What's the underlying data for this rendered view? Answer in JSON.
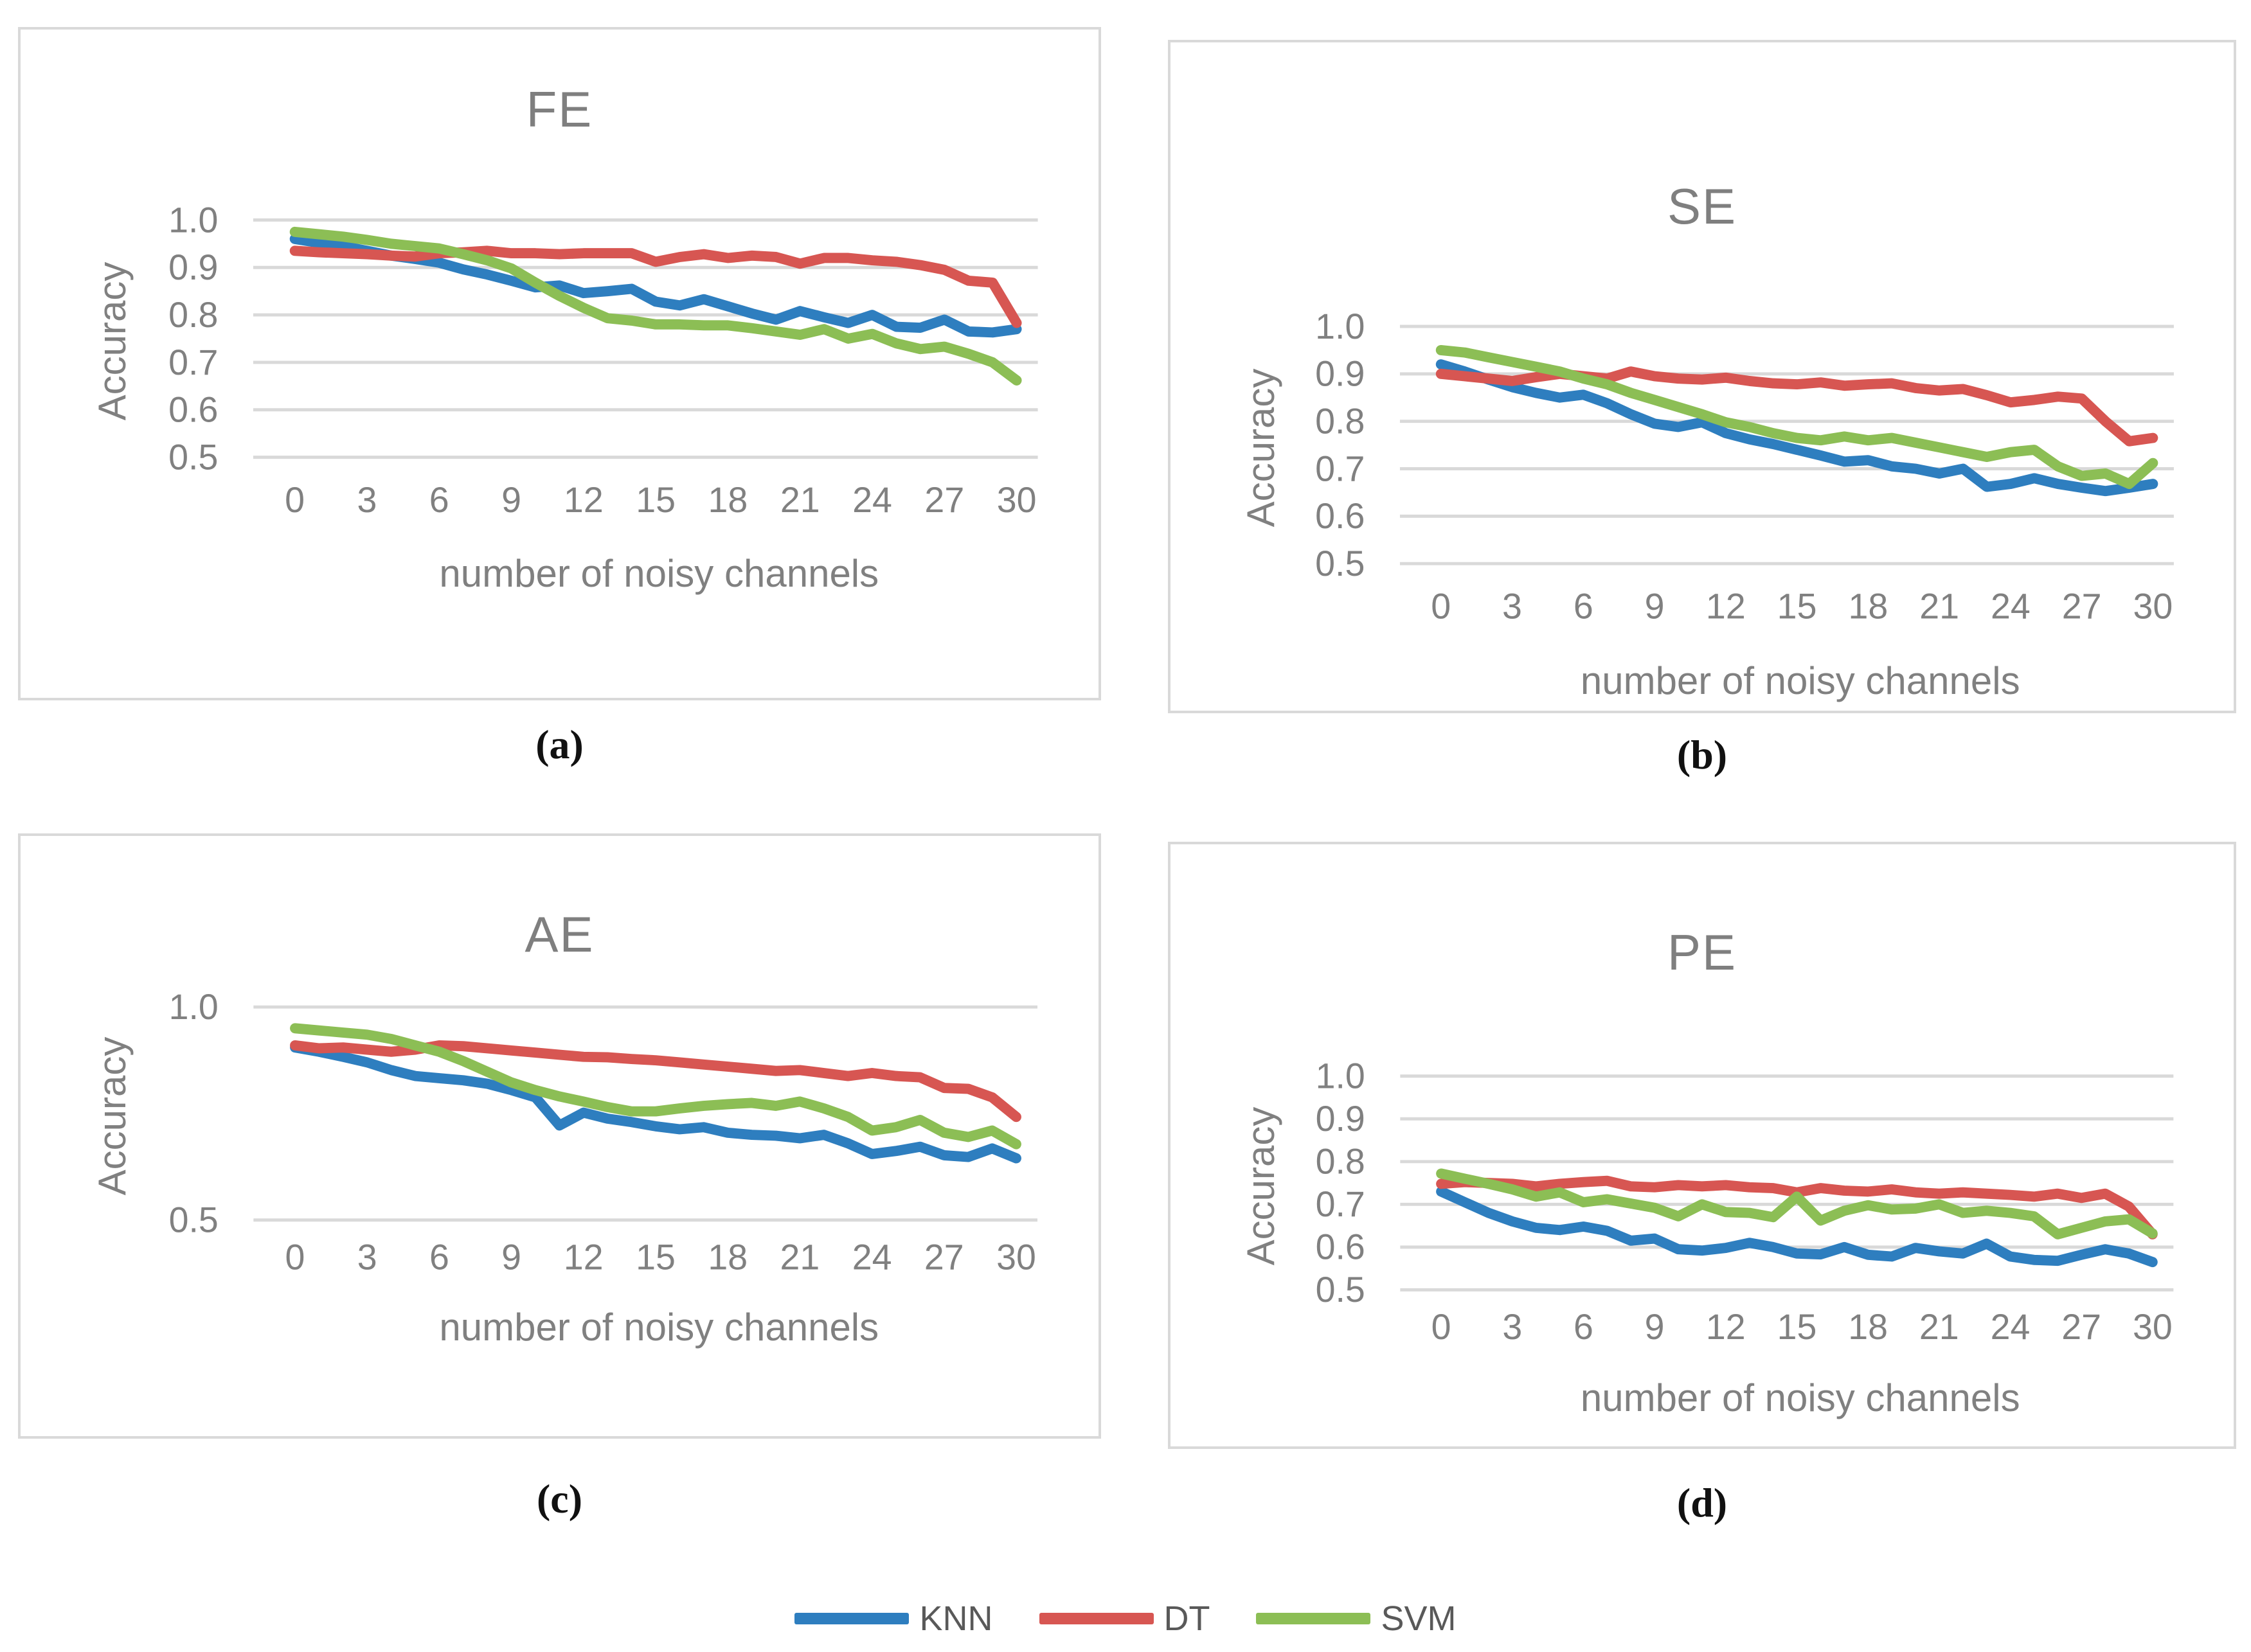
{
  "figure": {
    "background": "#FFFFFF",
    "gridline_color": "#D9D9D9",
    "axis_text_color": "#808080",
    "title_color": "#7F7F7F",
    "caption_color": "#111111"
  },
  "legend": [
    {
      "label": "KNN",
      "color": "#2E7EBF"
    },
    {
      "label": "DT",
      "color": "#D75652"
    },
    {
      "label": "SVM",
      "color": "#8CBE55"
    }
  ],
  "captions": [
    "(a)",
    "(b)",
    "(c)",
    "(d)"
  ],
  "chart_data": [
    {
      "type": "line",
      "title": "FE",
      "caption": "(a)",
      "xlabel": "number of noisy channels",
      "ylabel": "Accuracy",
      "xlim": [
        0,
        30
      ],
      "ylim": [
        0.5,
        1.0
      ],
      "grid": true,
      "legend_position": "figure-bottom",
      "x_ticks": [
        0,
        3,
        6,
        9,
        12,
        15,
        18,
        21,
        24,
        27,
        30
      ],
      "y_ticks": [
        1.0,
        0.9,
        0.8,
        0.7,
        0.6,
        0.5
      ],
      "x": [
        0,
        1,
        2,
        3,
        4,
        5,
        6,
        7,
        8,
        9,
        10,
        11,
        12,
        13,
        14,
        15,
        16,
        17,
        18,
        19,
        20,
        21,
        22,
        23,
        24,
        25,
        26,
        27,
        28,
        29,
        30
      ],
      "series": [
        {
          "name": "KNN",
          "color": "#2E7EBF",
          "values": [
            0.96,
            0.952,
            0.945,
            0.935,
            0.925,
            0.918,
            0.91,
            0.896,
            0.885,
            0.872,
            0.858,
            0.862,
            0.846,
            0.85,
            0.855,
            0.828,
            0.82,
            0.833,
            0.818,
            0.803,
            0.79,
            0.808,
            0.795,
            0.783,
            0.8,
            0.775,
            0.773,
            0.79,
            0.765,
            0.763,
            0.77
          ]
        },
        {
          "name": "DT",
          "color": "#D75652",
          "values": [
            0.935,
            0.932,
            0.93,
            0.928,
            0.925,
            0.923,
            0.93,
            0.932,
            0.935,
            0.93,
            0.93,
            0.928,
            0.93,
            0.93,
            0.93,
            0.912,
            0.922,
            0.928,
            0.92,
            0.925,
            0.922,
            0.908,
            0.92,
            0.92,
            0.915,
            0.912,
            0.905,
            0.895,
            0.872,
            0.868,
            0.783
          ]
        },
        {
          "name": "SVM",
          "color": "#8CBE55",
          "values": [
            0.975,
            0.97,
            0.965,
            0.958,
            0.95,
            0.945,
            0.94,
            0.928,
            0.915,
            0.898,
            0.868,
            0.84,
            0.815,
            0.793,
            0.788,
            0.78,
            0.78,
            0.778,
            0.778,
            0.772,
            0.765,
            0.758,
            0.77,
            0.75,
            0.76,
            0.74,
            0.728,
            0.733,
            0.718,
            0.7,
            0.662
          ]
        }
      ]
    },
    {
      "type": "line",
      "title": "SE",
      "caption": "(b)",
      "xlabel": "number of noisy channels",
      "ylabel": "Accuracy",
      "xlim": [
        0,
        30
      ],
      "ylim": [
        0.5,
        1.0
      ],
      "grid": true,
      "legend_position": "figure-bottom",
      "x_ticks": [
        0,
        3,
        6,
        9,
        12,
        15,
        18,
        21,
        24,
        27,
        30
      ],
      "y_ticks": [
        1.0,
        0.9,
        0.8,
        0.7,
        0.6,
        0.5
      ],
      "x": [
        0,
        1,
        2,
        3,
        4,
        5,
        6,
        7,
        8,
        9,
        10,
        11,
        12,
        13,
        14,
        15,
        16,
        17,
        18,
        19,
        20,
        21,
        22,
        23,
        24,
        25,
        26,
        27,
        28,
        29,
        30
      ],
      "series": [
        {
          "name": "KNN",
          "color": "#2E7EBF",
          "values": [
            0.92,
            0.905,
            0.888,
            0.872,
            0.86,
            0.85,
            0.856,
            0.838,
            0.815,
            0.795,
            0.788,
            0.798,
            0.775,
            0.762,
            0.752,
            0.74,
            0.728,
            0.715,
            0.718,
            0.705,
            0.7,
            0.69,
            0.7,
            0.662,
            0.668,
            0.68,
            0.668,
            0.66,
            0.653,
            0.66,
            0.668
          ]
        },
        {
          "name": "DT",
          "color": "#D75652",
          "values": [
            0.9,
            0.895,
            0.89,
            0.885,
            0.893,
            0.9,
            0.895,
            0.89,
            0.905,
            0.895,
            0.89,
            0.888,
            0.892,
            0.885,
            0.88,
            0.878,
            0.882,
            0.875,
            0.878,
            0.88,
            0.87,
            0.865,
            0.868,
            0.855,
            0.84,
            0.845,
            0.852,
            0.848,
            0.8,
            0.758,
            0.765
          ]
        },
        {
          "name": "SVM",
          "color": "#8CBE55",
          "values": [
            0.95,
            0.945,
            0.935,
            0.925,
            0.915,
            0.905,
            0.89,
            0.878,
            0.86,
            0.845,
            0.83,
            0.815,
            0.798,
            0.788,
            0.775,
            0.765,
            0.76,
            0.768,
            0.76,
            0.765,
            0.755,
            0.745,
            0.735,
            0.725,
            0.735,
            0.74,
            0.705,
            0.685,
            0.69,
            0.668,
            0.712
          ]
        }
      ]
    },
    {
      "type": "line",
      "title": "AE",
      "caption": "(c)",
      "xlabel": "number of noisy channels",
      "ylabel": "Accuracy",
      "xlim": [
        0,
        30
      ],
      "ylim": [
        0.5,
        1.0
      ],
      "grid": true,
      "legend_position": "figure-bottom",
      "x_ticks": [
        0,
        3,
        6,
        9,
        12,
        15,
        18,
        21,
        24,
        27,
        30
      ],
      "y_ticks": [
        1.0,
        0.5
      ],
      "x": [
        0,
        1,
        2,
        3,
        4,
        5,
        6,
        7,
        8,
        9,
        10,
        11,
        12,
        13,
        14,
        15,
        16,
        17,
        18,
        19,
        20,
        21,
        22,
        23,
        24,
        25,
        26,
        27,
        28,
        29,
        30
      ],
      "series": [
        {
          "name": "KNN",
          "color": "#2E7EBF",
          "values": [
            0.905,
            0.895,
            0.883,
            0.87,
            0.852,
            0.838,
            0.833,
            0.828,
            0.82,
            0.805,
            0.788,
            0.722,
            0.752,
            0.738,
            0.73,
            0.72,
            0.713,
            0.718,
            0.705,
            0.7,
            0.698,
            0.692,
            0.7,
            0.68,
            0.655,
            0.662,
            0.672,
            0.652,
            0.648,
            0.668,
            0.645
          ]
        },
        {
          "name": "DT",
          "color": "#D75652",
          "values": [
            0.91,
            0.903,
            0.905,
            0.9,
            0.895,
            0.9,
            0.91,
            0.908,
            0.903,
            0.898,
            0.893,
            0.888,
            0.883,
            0.882,
            0.878,
            0.875,
            0.87,
            0.865,
            0.86,
            0.855,
            0.85,
            0.852,
            0.845,
            0.838,
            0.845,
            0.838,
            0.835,
            0.81,
            0.808,
            0.788,
            0.742
          ]
        },
        {
          "name": "SVM",
          "color": "#8CBE55",
          "values": [
            0.95,
            0.945,
            0.94,
            0.935,
            0.925,
            0.91,
            0.895,
            0.873,
            0.848,
            0.823,
            0.805,
            0.79,
            0.778,
            0.765,
            0.755,
            0.755,
            0.762,
            0.768,
            0.772,
            0.775,
            0.768,
            0.778,
            0.762,
            0.742,
            0.71,
            0.718,
            0.735,
            0.705,
            0.695,
            0.71,
            0.678
          ]
        }
      ]
    },
    {
      "type": "line",
      "title": "PE",
      "caption": "(d)",
      "xlabel": "number of noisy channels",
      "ylabel": "Accuracy",
      "xlim": [
        0,
        30
      ],
      "ylim": [
        0.5,
        1.0
      ],
      "grid": true,
      "legend_position": "figure-bottom",
      "x_ticks": [
        0,
        3,
        6,
        9,
        12,
        15,
        18,
        21,
        24,
        27,
        30
      ],
      "y_ticks": [
        1.0,
        0.9,
        0.8,
        0.7,
        0.6,
        0.5
      ],
      "x": [
        0,
        1,
        2,
        3,
        4,
        5,
        6,
        7,
        8,
        9,
        10,
        11,
        12,
        13,
        14,
        15,
        16,
        17,
        18,
        19,
        20,
        21,
        22,
        23,
        24,
        25,
        26,
        27,
        28,
        29,
        30
      ],
      "series": [
        {
          "name": "KNN",
          "color": "#2E7EBF",
          "values": [
            0.73,
            0.705,
            0.68,
            0.66,
            0.645,
            0.64,
            0.648,
            0.638,
            0.615,
            0.62,
            0.595,
            0.592,
            0.598,
            0.61,
            0.6,
            0.585,
            0.583,
            0.6,
            0.582,
            0.578,
            0.598,
            0.59,
            0.585,
            0.608,
            0.578,
            0.57,
            0.568,
            0.582,
            0.595,
            0.585,
            0.565
          ]
        },
        {
          "name": "DT",
          "color": "#D75652",
          "values": [
            0.748,
            0.752,
            0.75,
            0.748,
            0.742,
            0.748,
            0.752,
            0.755,
            0.742,
            0.74,
            0.745,
            0.742,
            0.745,
            0.74,
            0.738,
            0.728,
            0.738,
            0.732,
            0.73,
            0.735,
            0.728,
            0.725,
            0.728,
            0.725,
            0.722,
            0.718,
            0.725,
            0.715,
            0.725,
            0.695,
            0.63
          ]
        },
        {
          "name": "SVM",
          "color": "#8CBE55",
          "values": [
            0.772,
            0.76,
            0.748,
            0.735,
            0.718,
            0.728,
            0.705,
            0.712,
            0.702,
            0.692,
            0.672,
            0.7,
            0.682,
            0.68,
            0.67,
            0.718,
            0.662,
            0.685,
            0.698,
            0.688,
            0.69,
            0.7,
            0.68,
            0.685,
            0.68,
            0.672,
            0.63,
            0.645,
            0.66,
            0.665,
            0.632
          ]
        }
      ]
    }
  ]
}
